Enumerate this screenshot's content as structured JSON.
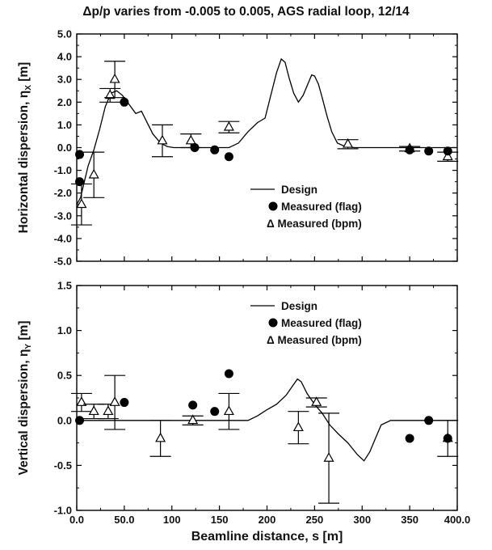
{
  "figure": {
    "title": "Δp/p varies from -0.005 to 0.005, AGS radial loop, 12/14",
    "xlabel": "Beamline distance, s [m]"
  },
  "chart_data": [
    {
      "type": "line",
      "ylabel": "Horizontal dispersion, η",
      "ylabel_sub": "X",
      "ylabel_unit": " [m]",
      "xlim": [
        0,
        400
      ],
      "ylim": [
        -5,
        5
      ],
      "xticks": [
        0,
        50,
        100,
        150,
        200,
        250,
        300,
        350,
        400
      ],
      "xticklabels": [
        "",
        "",
        "",
        "",
        "",
        "",
        "",
        "",
        ""
      ],
      "yticks": [
        -5,
        -4,
        -3,
        -2,
        -1,
        0,
        1,
        2,
        3,
        4,
        5
      ],
      "yticklabels": [
        "-5.0",
        "-4.0",
        "-3.0",
        "-2.0",
        "-1.0",
        "0.0",
        "1.0",
        "2.0",
        "3.0",
        "4.0",
        "5.0"
      ],
      "legend": {
        "position": "center-right",
        "entries": [
          "Design",
          "Measured (flag)",
          "Δ Measured (bpm)"
        ]
      },
      "design": {
        "x": [
          0,
          4,
          8,
          12,
          18,
          24,
          30,
          36,
          42,
          48,
          55,
          62,
          68,
          74,
          80,
          88,
          95,
          102,
          110,
          120,
          130,
          140,
          150,
          160,
          170,
          180,
          190,
          198,
          204,
          210,
          215,
          219,
          223,
          228,
          233,
          238,
          243,
          247,
          250,
          254,
          258,
          263,
          268,
          274,
          282,
          292,
          305,
          320,
          340,
          360,
          380,
          400
        ],
        "y": [
          -2.5,
          -2.2,
          -1.5,
          -0.8,
          -0.1,
          0.8,
          1.8,
          2.4,
          2.5,
          2.3,
          1.9,
          1.5,
          1.6,
          1.1,
          0.6,
          0.2,
          0.05,
          0.0,
          0.0,
          0.0,
          0.0,
          0.0,
          0.0,
          0.0,
          0.2,
          0.7,
          1.1,
          1.3,
          2.3,
          3.3,
          3.9,
          3.75,
          3.1,
          2.4,
          2.0,
          2.3,
          2.8,
          3.2,
          3.15,
          2.8,
          2.2,
          1.4,
          0.7,
          0.2,
          0.05,
          0.0,
          0.0,
          0.0,
          0.0,
          0.0,
          0.0,
          0.0
        ]
      },
      "flag": {
        "x": [
          3,
          3,
          50,
          124,
          145,
          160,
          350,
          370,
          390
        ],
        "y": [
          -0.3,
          -1.5,
          2.0,
          0.0,
          -0.1,
          -0.4,
          -0.1,
          -0.15,
          -0.15
        ]
      },
      "bpm": {
        "x": [
          5,
          18,
          35,
          40,
          90,
          120,
          160,
          285,
          350,
          390
        ],
        "y": [
          -2.5,
          -1.2,
          2.3,
          3.0,
          0.3,
          0.3,
          0.9,
          0.15,
          -0.05,
          -0.4
        ],
        "err": [
          0.9,
          1.0,
          0.3,
          0.8,
          0.7,
          0.3,
          0.25,
          0.2,
          0.1,
          0.2
        ]
      }
    },
    {
      "type": "line",
      "ylabel": "Vertical dispersion, η",
      "ylabel_sub": "Y",
      "ylabel_unit": " [m]",
      "xlim": [
        0,
        400
      ],
      "ylim": [
        -1.0,
        1.5
      ],
      "xticks": [
        0,
        50,
        100,
        150,
        200,
        250,
        300,
        350,
        400
      ],
      "xticklabels": [
        "0.0",
        "50.0",
        "100",
        "150",
        "200",
        "250",
        "300",
        "350",
        "400.0"
      ],
      "yticks": [
        -1.0,
        -0.5,
        0.0,
        0.5,
        1.0,
        1.5
      ],
      "yticklabels": [
        "-1.0",
        "-0.5",
        "0.0",
        "0.5",
        "1.0",
        "1.5"
      ],
      "legend": {
        "position": "top-right",
        "entries": [
          "Design",
          "Measured (flag)",
          "Δ Measured (bpm)"
        ]
      },
      "design": {
        "x": [
          0,
          50,
          100,
          150,
          180,
          190,
          200,
          210,
          220,
          228,
          232,
          236,
          242,
          250,
          258,
          266,
          275,
          285,
          295,
          302,
          308,
          314,
          320,
          330,
          345,
          360,
          380,
          390,
          400
        ],
        "y": [
          0.0,
          0.0,
          0.0,
          0.0,
          0.0,
          0.05,
          0.12,
          0.18,
          0.28,
          0.4,
          0.46,
          0.43,
          0.3,
          0.18,
          0.08,
          -0.05,
          -0.15,
          -0.25,
          -0.38,
          -0.45,
          -0.35,
          -0.2,
          -0.05,
          0.0,
          0.0,
          0.0,
          0.0,
          0.0,
          0.0
        ]
      },
      "flag": {
        "x": [
          3,
          50,
          122,
          145,
          160,
          350,
          370,
          390
        ],
        "y": [
          0.0,
          0.2,
          0.17,
          0.1,
          0.52,
          -0.2,
          0.0,
          -0.2
        ]
      },
      "bpm": {
        "x": [
          5,
          18,
          33,
          40,
          88,
          122,
          160,
          233,
          252,
          265,
          390
        ],
        "y": [
          0.2,
          0.1,
          0.1,
          0.2,
          -0.2,
          0.0,
          0.1,
          -0.08,
          0.2,
          -0.42,
          -0.2
        ],
        "err": [
          0.1,
          0.08,
          0.08,
          0.3,
          0.2,
          0.05,
          0.2,
          0.18,
          0.05,
          0.5,
          0.2
        ]
      }
    }
  ]
}
